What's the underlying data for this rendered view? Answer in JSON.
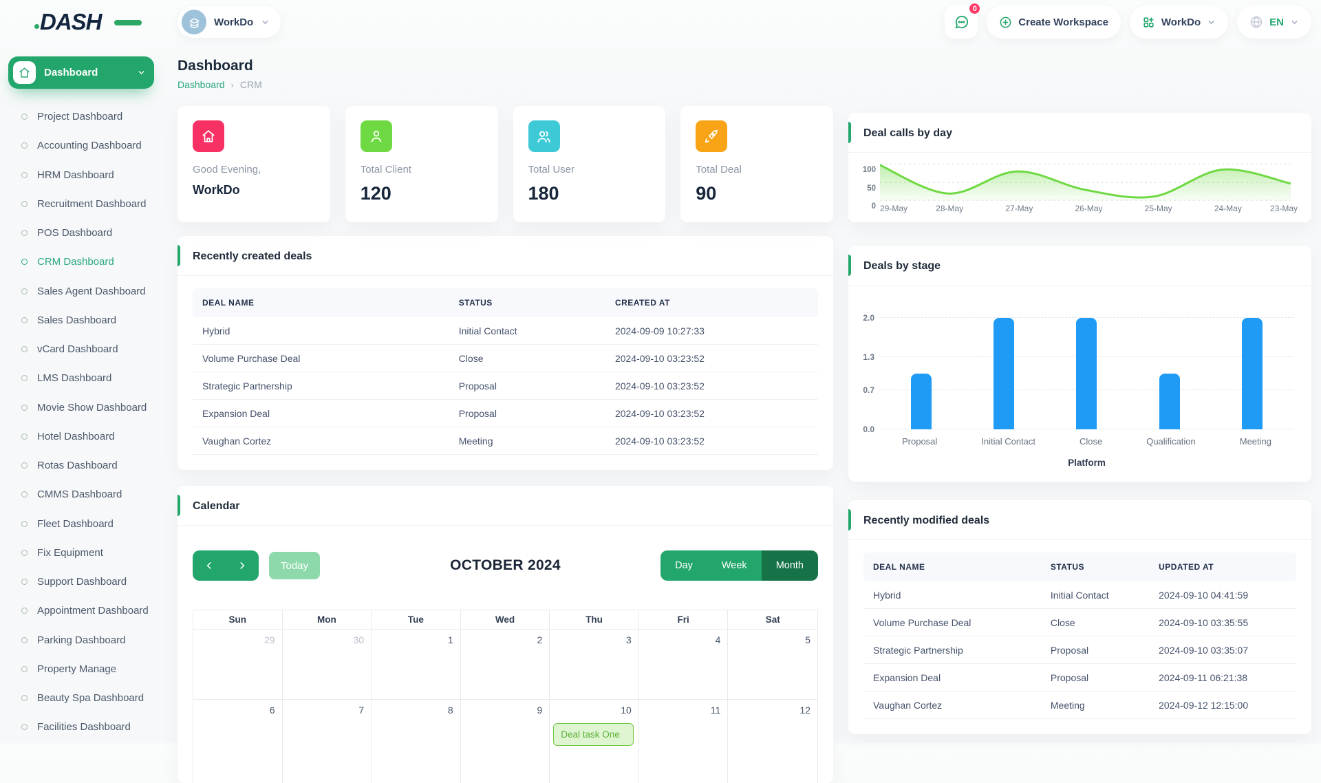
{
  "app": {
    "primary_color": "#22a66c",
    "logo_text": "DASH"
  },
  "header": {
    "workspace_chip_label": "WorkDo",
    "notification_badge": "0",
    "create_workspace_label": "Create Workspace",
    "workspace_menu_label": "WorkDo",
    "language_label": "EN"
  },
  "sidebar": {
    "active_label": "Dashboard",
    "active_item": "CRM Dashboard",
    "items": [
      "Project Dashboard",
      "Accounting Dashboard",
      "HRM Dashboard",
      "Recruitment Dashboard",
      "POS Dashboard",
      "CRM Dashboard",
      "Sales Agent Dashboard",
      "Sales Dashboard",
      "vCard Dashboard",
      "LMS Dashboard",
      "Movie Show Dashboard",
      "Hotel Dashboard",
      "Rotas Dashboard",
      "CMMS Dashboard",
      "Fleet Dashboard",
      "Fix Equipment",
      "Support Dashboard",
      "Appointment Dashboard",
      "Parking Dashboard",
      "Property Manage",
      "Beauty Spa Dashboard",
      "Facilities Dashboard"
    ]
  },
  "page": {
    "title": "Dashboard",
    "breadcrumb_root": "Dashboard",
    "breadcrumb_current": "CRM"
  },
  "stats": [
    {
      "label": "Good Evening,",
      "value": "WorkDo",
      "icon": "home-icon",
      "color": "#f73164"
    },
    {
      "label": "Total Client",
      "value": "120",
      "icon": "user-icon",
      "color": "#6fd943"
    },
    {
      "label": "Total User",
      "value": "180",
      "icon": "users-icon",
      "color": "#3ec9d6"
    },
    {
      "label": "Total Deal",
      "value": "90",
      "icon": "rocket-icon",
      "color": "#f9a416"
    }
  ],
  "chart_data": [
    {
      "type": "area",
      "title": "Deal calls by day",
      "x": [
        "29-May",
        "28-May",
        "27-May",
        "26-May",
        "25-May",
        "24-May",
        "23-May"
      ],
      "values": [
        97,
        20,
        80,
        30,
        12,
        85,
        47
      ],
      "yticks": [
        100,
        50,
        0
      ],
      "ylim": [
        0,
        112
      ],
      "line_color": "#6fd943",
      "fill_color": "#6fd943",
      "grid": "dashed-horizontal",
      "legend": "none"
    },
    {
      "type": "bar",
      "title": "Deals by stage",
      "categories": [
        "Proposal",
        "Initial Contact",
        "Close",
        "Qualification",
        "Meeting"
      ],
      "values": [
        1,
        2,
        2,
        1,
        2
      ],
      "yticks": [
        2.0,
        1.3,
        0.7,
        0.0
      ],
      "ylim": [
        0,
        2.04
      ],
      "xlabel": "Platform",
      "bar_color": "#209bf5",
      "grid": "dashed-horizontal",
      "legend": "none"
    }
  ],
  "recent_created": {
    "title": "Recently created deals",
    "columns": [
      "DEAL NAME",
      "STATUS",
      "CREATED AT"
    ],
    "rows": [
      [
        "Hybrid",
        "Initial Contact",
        "2024-09-09 10:27:33"
      ],
      [
        "Volume Purchase Deal",
        "Close",
        "2024-09-10 03:23:52"
      ],
      [
        "Strategic Partnership",
        "Proposal",
        "2024-09-10 03:23:52"
      ],
      [
        "Expansion Deal",
        "Proposal",
        "2024-09-10 03:23:52"
      ],
      [
        "Vaughan Cortez",
        "Meeting",
        "2024-09-10 03:23:52"
      ]
    ]
  },
  "recent_modified": {
    "title": "Recently modified deals",
    "columns": [
      "DEAL NAME",
      "STATUS",
      "UPDATED AT"
    ],
    "rows": [
      [
        "Hybrid",
        "Initial Contact",
        "2024-09-10 04:41:59"
      ],
      [
        "Volume Purchase Deal",
        "Close",
        "2024-09-10 03:35:55"
      ],
      [
        "Strategic Partnership",
        "Proposal",
        "2024-09-10 03:35:07"
      ],
      [
        "Expansion Deal",
        "Proposal",
        "2024-09-11 06:21:38"
      ],
      [
        "Vaughan Cortez",
        "Meeting",
        "2024-09-12 12:15:00"
      ]
    ]
  },
  "calendar": {
    "title": "Calendar",
    "today_label": "Today",
    "month_label": "OCTOBER 2024",
    "views": [
      "Day",
      "Week",
      "Month"
    ],
    "active_view": "Month",
    "day_headers": [
      "Sun",
      "Mon",
      "Tue",
      "Wed",
      "Thu",
      "Fri",
      "Sat"
    ],
    "weeks": [
      [
        {
          "day": "29",
          "muted": true
        },
        {
          "day": "30",
          "muted": true
        },
        {
          "day": "1"
        },
        {
          "day": "2"
        },
        {
          "day": "3"
        },
        {
          "day": "4"
        },
        {
          "day": "5"
        }
      ],
      [
        {
          "day": "6"
        },
        {
          "day": "7"
        },
        {
          "day": "8"
        },
        {
          "day": "9"
        },
        {
          "day": "10",
          "event": "Deal task One"
        },
        {
          "day": "11"
        },
        {
          "day": "12"
        }
      ]
    ]
  }
}
